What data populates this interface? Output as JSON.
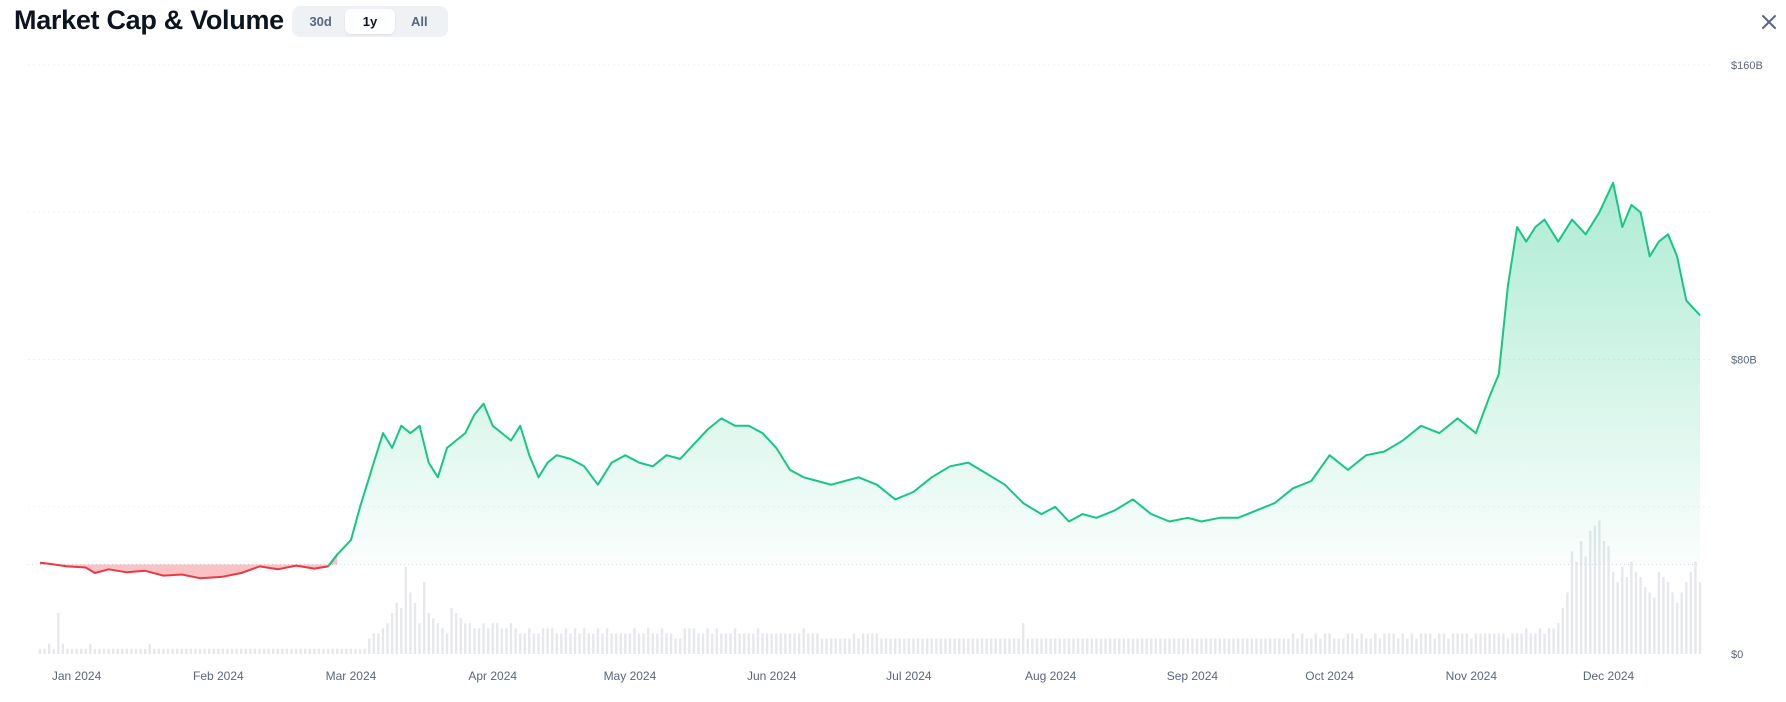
{
  "header": {
    "title": "Market Cap & Volume",
    "ranges": [
      {
        "label": "30d",
        "active": false
      },
      {
        "label": "1y",
        "active": true
      },
      {
        "label": "All",
        "active": false
      }
    ],
    "close_icon": "close-icon"
  },
  "colors": {
    "up_line": "#16c784",
    "down_line": "#ea3943",
    "volume_bar": "#e6e8ec",
    "grid": "#eff2f5"
  },
  "chart_data": {
    "type": "area",
    "title": "",
    "y_ticks": [
      "$160B",
      "$80B",
      "$0"
    ],
    "ylim": [
      0,
      160
    ],
    "x_ticks": [
      "Jan 2024",
      "Feb 2024",
      "Mar 2024",
      "Apr 2024",
      "May 2024",
      "Jun 2024",
      "Jul 2024",
      "Aug 2024",
      "Sep 2024",
      "Oct 2024",
      "Nov 2024",
      "Dec 2024"
    ],
    "x_range": [
      "2023-12-24",
      "2024-12-21"
    ],
    "baseline": 24.3,
    "grid": true,
    "series": [
      {
        "type": "line",
        "x": [
          "2023-12-24",
          "2023-12-26",
          "2023-12-30",
          "2024-01-03",
          "2024-01-05",
          "2024-01-08",
          "2024-01-12",
          "2024-01-16",
          "2024-01-20",
          "2024-01-24",
          "2024-01-28",
          "2024-02-02",
          "2024-02-06",
          "2024-02-10",
          "2024-02-14",
          "2024-02-18",
          "2024-02-22",
          "2024-02-25",
          "2024-02-27",
          "2024-03-01",
          "2024-03-03",
          "2024-03-06",
          "2024-03-08",
          "2024-03-10",
          "2024-03-12",
          "2024-03-14",
          "2024-03-16",
          "2024-03-18",
          "2024-03-20",
          "2024-03-22",
          "2024-03-24",
          "2024-03-26",
          "2024-03-28",
          "2024-03-30",
          "2024-04-01",
          "2024-04-03",
          "2024-04-05",
          "2024-04-07",
          "2024-04-09",
          "2024-04-11",
          "2024-04-13",
          "2024-04-15",
          "2024-04-18",
          "2024-04-21",
          "2024-04-24",
          "2024-04-27",
          "2024-04-30",
          "2024-05-03",
          "2024-05-06",
          "2024-05-09",
          "2024-05-12",
          "2024-05-15",
          "2024-05-18",
          "2024-05-21",
          "2024-05-24",
          "2024-05-27",
          "2024-05-30",
          "2024-06-02",
          "2024-06-05",
          "2024-06-08",
          "2024-06-11",
          "2024-06-14",
          "2024-06-17",
          "2024-06-20",
          "2024-06-24",
          "2024-06-28",
          "2024-07-02",
          "2024-07-06",
          "2024-07-10",
          "2024-07-14",
          "2024-07-18",
          "2024-07-22",
          "2024-07-26",
          "2024-07-30",
          "2024-08-02",
          "2024-08-05",
          "2024-08-08",
          "2024-08-11",
          "2024-08-15",
          "2024-08-19",
          "2024-08-23",
          "2024-08-27",
          "2024-08-31",
          "2024-09-03",
          "2024-09-07",
          "2024-09-11",
          "2024-09-15",
          "2024-09-19",
          "2024-09-23",
          "2024-09-27",
          "2024-10-01",
          "2024-10-05",
          "2024-10-09",
          "2024-10-13",
          "2024-10-17",
          "2024-10-21",
          "2024-10-25",
          "2024-10-29",
          "2024-11-02",
          "2024-11-05",
          "2024-11-07",
          "2024-11-09",
          "2024-11-11",
          "2024-11-13",
          "2024-11-15",
          "2024-11-17",
          "2024-11-20",
          "2024-11-23",
          "2024-11-26",
          "2024-11-29",
          "2024-12-02",
          "2024-12-04",
          "2024-12-06",
          "2024-12-08",
          "2024-12-10",
          "2024-12-12",
          "2024-12-14",
          "2024-12-16",
          "2024-12-18",
          "2024-12-21"
        ],
        "values": [
          24.8,
          24.5,
          23.8,
          23.5,
          22.0,
          23.0,
          22.2,
          22.6,
          21.3,
          21.6,
          20.6,
          21.0,
          22.0,
          23.8,
          23.0,
          24.0,
          23.2,
          23.8,
          27.0,
          31.0,
          40.0,
          52.0,
          60.0,
          56.0,
          62.0,
          60.0,
          62.0,
          52.0,
          48.0,
          56.0,
          58.0,
          60.0,
          65.0,
          68.0,
          62.0,
          60.0,
          58.0,
          62.0,
          54.0,
          48.0,
          52.0,
          54.0,
          53.0,
          51.0,
          46.0,
          52.0,
          54.0,
          52.0,
          51.0,
          54.0,
          53.0,
          57.0,
          61.0,
          64.0,
          62.0,
          62.0,
          60.0,
          56.0,
          50.0,
          48.0,
          47.0,
          46.0,
          47.0,
          48.0,
          46.0,
          42.0,
          44.0,
          48.0,
          51.0,
          52.0,
          49.0,
          46.0,
          41.0,
          38.0,
          40.0,
          36.0,
          38.0,
          37.0,
          39.0,
          42.0,
          38.0,
          36.0,
          37.0,
          36.0,
          37.0,
          37.0,
          39.0,
          41.0,
          45.0,
          47.0,
          54.0,
          50.0,
          54.0,
          55.0,
          58.0,
          62.0,
          60.0,
          64.0,
          60.0,
          70.0,
          76.0,
          100.0,
          116.0,
          112.0,
          116.0,
          118.0,
          112.0,
          118.0,
          114.0,
          120.0,
          128.0,
          116.0,
          122.0,
          120.0,
          108.0,
          112.0,
          114.0,
          108.0,
          96.0,
          92.0
        ],
        "down_color": "#ea3943",
        "up_color": "#16c784"
      },
      {
        "type": "bar",
        "name": "",
        "x_start": "2023-12-24",
        "x_step_days": 1,
        "values": [
          1,
          1,
          2,
          1,
          8,
          2,
          1,
          1,
          1,
          1,
          1,
          2,
          1,
          1,
          1,
          1,
          1,
          1,
          1,
          1,
          1,
          1,
          1,
          1,
          2,
          1,
          1,
          1,
          1,
          1,
          1,
          1,
          1,
          1,
          1,
          1,
          1,
          1,
          1,
          1,
          1,
          1,
          1,
          1,
          1,
          1,
          1,
          1,
          1,
          1,
          1,
          1,
          1,
          1,
          1,
          1,
          1,
          1,
          1,
          1,
          1,
          1,
          1,
          1,
          1,
          1,
          1,
          1,
          1,
          1,
          1,
          1,
          3,
          4,
          4,
          5,
          6,
          8,
          10,
          9,
          17,
          12,
          10,
          6,
          14,
          8,
          7,
          6,
          5,
          4,
          9,
          8,
          7,
          6,
          6,
          5,
          5,
          6,
          5,
          6,
          6,
          5,
          5,
          6,
          5,
          4,
          4,
          5,
          4,
          4,
          5,
          5,
          5,
          4,
          4,
          5,
          4,
          5,
          4,
          5,
          4,
          4,
          5,
          4,
          5,
          4,
          4,
          4,
          4,
          4,
          5,
          4,
          4,
          5,
          4,
          4,
          5,
          4,
          4,
          3,
          3,
          5,
          5,
          5,
          4,
          4,
          5,
          4,
          5,
          4,
          4,
          4,
          5,
          4,
          4,
          4,
          4,
          5,
          4,
          4,
          4,
          4,
          4,
          4,
          4,
          4,
          4,
          5,
          4,
          4,
          4,
          3,
          3,
          3,
          3,
          3,
          3,
          3,
          4,
          3,
          4,
          4,
          4,
          4,
          3,
          3,
          3,
          3,
          3,
          3,
          3,
          3,
          3,
          3,
          3,
          3,
          3,
          3,
          3,
          3,
          3,
          3,
          3,
          3,
          3,
          3,
          3,
          3,
          3,
          3,
          3,
          3,
          3,
          3,
          3,
          6,
          3,
          3,
          3,
          3,
          3,
          3,
          3,
          3,
          3,
          3,
          3,
          3,
          3,
          3,
          3,
          3,
          3,
          3,
          3,
          3,
          3,
          3,
          3,
          3,
          3,
          3,
          3,
          3,
          3,
          3,
          3,
          3,
          3,
          3,
          3,
          3,
          3,
          3,
          3,
          3,
          3,
          3,
          3,
          3,
          3,
          3,
          3,
          3,
          3,
          3,
          3,
          3,
          3,
          3,
          3,
          3,
          3,
          3,
          4,
          3,
          4,
          3,
          3,
          4,
          3,
          4,
          4,
          3,
          3,
          3,
          4,
          4,
          3,
          4,
          3,
          3,
          4,
          3,
          4,
          4,
          4,
          3,
          4,
          3,
          4,
          3,
          4,
          4,
          4,
          3,
          4,
          4,
          3,
          4,
          4,
          4,
          4,
          3,
          4,
          4,
          4,
          4,
          4,
          4,
          4,
          3,
          4,
          4,
          4,
          5,
          4,
          4,
          5,
          4,
          5,
          5,
          6,
          9,
          12,
          20,
          18,
          22,
          19,
          24,
          25,
          26,
          22,
          21,
          16,
          14,
          17,
          15,
          18,
          16,
          15,
          13,
          12,
          11,
          16,
          15,
          14,
          12,
          10,
          12,
          14,
          16,
          18,
          14,
          12,
          10,
          9,
          11,
          10,
          8,
          7,
          9,
          11,
          12,
          14,
          8,
          7
        ]
      }
    ]
  }
}
